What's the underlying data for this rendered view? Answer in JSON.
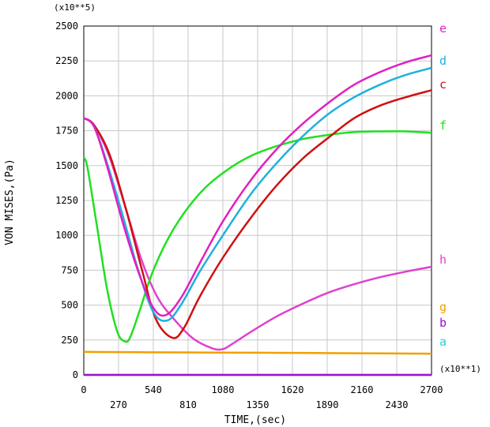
{
  "chart_data": {
    "type": "line",
    "xlabel": "TIME,(sec)",
    "ylabel": "VON MISES,(Pa)",
    "x_multiplier": "(x10**1)",
    "y_multiplier": "(x10**5)",
    "xlim": [
      0,
      2700
    ],
    "ylim": [
      0,
      2500
    ],
    "grid": true,
    "x_ticks_top": [
      "0",
      "540",
      "1080",
      "1620",
      "2160",
      "2700"
    ],
    "x_ticks_bottom": [
      "270",
      "810",
      "1350",
      "1890",
      "2430"
    ],
    "y_ticks": [
      "0",
      "250",
      "500",
      "750",
      "1000",
      "1250",
      "1500",
      "1750",
      "2000",
      "2250",
      "2500"
    ],
    "series": [
      {
        "name": "e",
        "color": "#e020c0",
        "x": [
          0,
          80,
          180,
          300,
          420,
          540,
          640,
          760,
          900,
          1080,
          1300,
          1500,
          1700,
          1900,
          2100,
          2300,
          2500,
          2700
        ],
        "y": [
          1840,
          1780,
          1500,
          1100,
          750,
          480,
          430,
          560,
          800,
          1100,
          1400,
          1620,
          1800,
          1950,
          2080,
          2170,
          2240,
          2290
        ]
      },
      {
        "name": "d",
        "color": "#20b0e0",
        "x": [
          0,
          80,
          180,
          300,
          420,
          540,
          650,
          760,
          900,
          1080,
          1300,
          1500,
          1700,
          1900,
          2100,
          2300,
          2500,
          2700
        ],
        "y": [
          1840,
          1780,
          1520,
          1150,
          760,
          450,
          390,
          510,
          740,
          1000,
          1300,
          1520,
          1710,
          1870,
          1990,
          2080,
          2150,
          2200
        ]
      },
      {
        "name": "c",
        "color": "#d01010",
        "x": [
          0,
          80,
          200,
          330,
          450,
          560,
          690,
          780,
          900,
          1080,
          1300,
          1500,
          1700,
          1900,
          2100,
          2300,
          2500,
          2700
        ],
        "y": [
          1840,
          1790,
          1580,
          1180,
          760,
          400,
          265,
          340,
          560,
          840,
          1130,
          1360,
          1550,
          1700,
          1840,
          1930,
          1990,
          2040
        ]
      },
      {
        "name": "f",
        "color": "#20e020",
        "x": [
          0,
          30,
          100,
          180,
          260,
          320,
          360,
          430,
          540,
          700,
          900,
          1100,
          1300,
          1500,
          1700,
          1900,
          2100,
          2300,
          2500,
          2700
        ],
        "y": [
          1560,
          1480,
          1080,
          620,
          310,
          240,
          270,
          450,
          750,
          1050,
          1300,
          1460,
          1570,
          1640,
          1690,
          1720,
          1740,
          1745,
          1745,
          1735
        ]
      },
      {
        "name": "h",
        "color": "#e040d0",
        "x": [
          0,
          80,
          200,
          330,
          450,
          570,
          700,
          850,
          1000,
          1080,
          1150,
          1300,
          1500,
          1700,
          1900,
          2100,
          2300,
          2500,
          2700
        ],
        "y": [
          1840,
          1790,
          1560,
          1180,
          820,
          560,
          400,
          260,
          190,
          185,
          220,
          310,
          420,
          510,
          590,
          650,
          700,
          740,
          775
        ]
      },
      {
        "name": "g",
        "color": "#f0a000",
        "x": [
          0,
          540,
          1080,
          1620,
          2160,
          2700
        ],
        "y": [
          165,
          162,
          160,
          158,
          155,
          152
        ]
      },
      {
        "name": "b",
        "color": "#a010d0",
        "x": [
          0,
          2700
        ],
        "y": [
          0,
          0
        ]
      },
      {
        "name": "a",
        "color": "#20d0e0",
        "x": [
          0,
          2700
        ],
        "y": [
          0,
          0
        ]
      }
    ]
  }
}
